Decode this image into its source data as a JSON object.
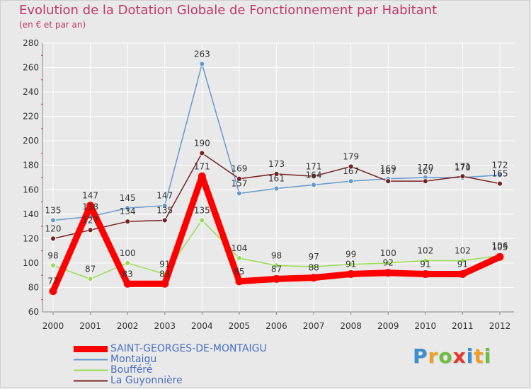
{
  "chart_data": {
    "type": "line",
    "title": "Evolution de la Dotation Globale de Fonctionnement par Habitant",
    "subtitle": "(en € et par an)",
    "x": [
      "2000",
      "2001",
      "2002",
      "2003",
      "2004",
      "2005",
      "2006",
      "2007",
      "2008",
      "2009",
      "2010",
      "2011",
      "2012"
    ],
    "ylim": [
      60,
      280
    ],
    "yticks": [
      60,
      80,
      100,
      120,
      140,
      160,
      180,
      200,
      220,
      240,
      260,
      280
    ],
    "series": [
      {
        "name": "SAINT-GEORGES-DE-MONTAIGU",
        "color": "#ff0000",
        "values": [
          77,
          147,
          83,
          83,
          171,
          85,
          87,
          88,
          91,
          92,
          91,
          91,
          105
        ]
      },
      {
        "name": "Montaigu",
        "color": "#6699cc",
        "values": [
          135,
          138,
          145,
          147,
          263,
          157,
          161,
          164,
          167,
          169,
          170,
          170,
          172
        ]
      },
      {
        "name": "Boufféré",
        "color": "#99dd55",
        "values": [
          98,
          87,
          100,
          91,
          135,
          104,
          98,
          97,
          99,
          100,
          102,
          102,
          106
        ]
      },
      {
        "name": "La Guyonnière",
        "color": "#772222",
        "values": [
          120,
          127,
          134,
          135,
          190,
          169,
          173,
          171,
          179,
          167,
          167,
          171,
          165
        ]
      }
    ]
  },
  "logo": {
    "letters": [
      "P",
      "r",
      "o",
      "x",
      "i",
      "t",
      "i"
    ]
  },
  "colors": {
    "title": "#c2366a",
    "axis_text": "#333333",
    "grid": "#ffffff"
  }
}
